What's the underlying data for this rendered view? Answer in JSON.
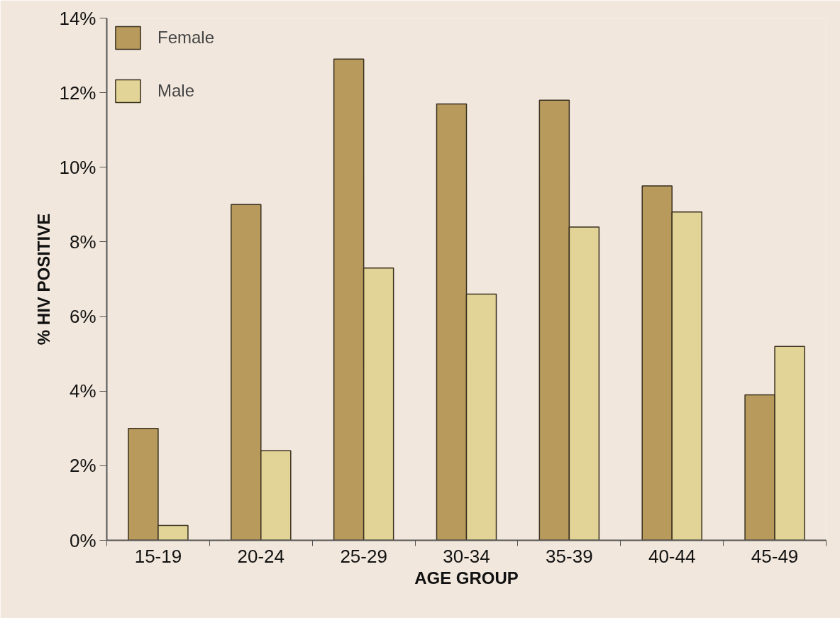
{
  "chart_data": {
    "type": "bar",
    "xlabel": "AGE GROUP",
    "ylabel": "% HIV POSITIVE",
    "categories": [
      "15-19",
      "20-24",
      "25-29",
      "30-34",
      "35-39",
      "40-44",
      "45-49"
    ],
    "series": [
      {
        "name": "Female",
        "color": "#b89a5c",
        "values": [
          3.0,
          9.0,
          12.9,
          11.7,
          11.8,
          9.5,
          3.9
        ]
      },
      {
        "name": "Male",
        "color": "#e2d496",
        "values": [
          0.4,
          2.4,
          7.3,
          6.6,
          8.4,
          8.8,
          5.2
        ]
      }
    ],
    "ylim": [
      0,
      14
    ],
    "yticks": [
      {
        "value": 0,
        "label": "0%"
      },
      {
        "value": 2,
        "label": "2%"
      },
      {
        "value": 4,
        "label": "4%"
      },
      {
        "value": 6,
        "label": "6%"
      },
      {
        "value": 8,
        "label": "8%"
      },
      {
        "value": 10,
        "label": "10%"
      },
      {
        "value": 12,
        "label": "12%"
      },
      {
        "value": 14,
        "label": "14%"
      }
    ],
    "legend": "top left",
    "grid": false
  }
}
